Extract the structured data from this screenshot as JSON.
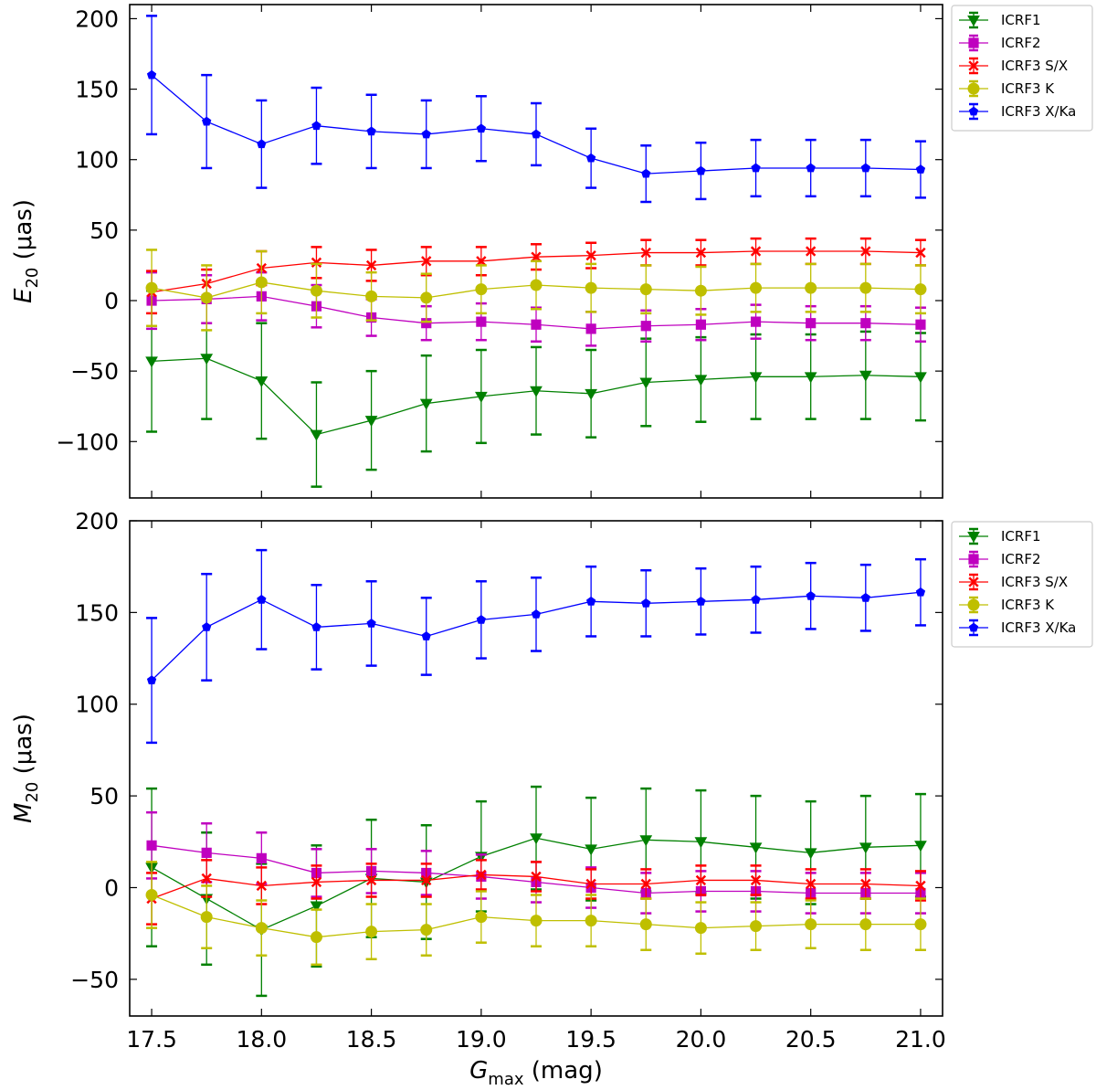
{
  "chart_data": [
    {
      "type": "line",
      "panel": "top",
      "ylabel": {
        "symbol": "E",
        "sub": "20",
        "unit": " (μas)"
      },
      "xlim": [
        17.4,
        21.1
      ],
      "ylim": [
        -140,
        210
      ],
      "yticks": [
        -100,
        -50,
        0,
        50,
        100,
        150,
        200
      ],
      "ytick_labels": [
        "−100",
        "−50",
        "0",
        "50",
        "100",
        "150",
        "200"
      ],
      "x": [
        17.5,
        17.75,
        18.0,
        18.25,
        18.5,
        18.75,
        19.0,
        19.25,
        19.5,
        19.75,
        20.0,
        20.25,
        20.5,
        20.75,
        21.0
      ],
      "legend_position": "upper right, outside",
      "series": [
        {
          "name": "ICRF1",
          "color": "#008000",
          "marker": "triangle-down",
          "values": [
            -43,
            -41,
            -57,
            -95,
            -85,
            -73,
            -68,
            -64,
            -66,
            -58,
            -56,
            -54,
            -54,
            -53,
            -54
          ],
          "errors": [
            50,
            43,
            41,
            37,
            35,
            34,
            33,
            31,
            31,
            31,
            30,
            30,
            30,
            31,
            31
          ]
        },
        {
          "name": "ICRF2",
          "color": "#bf00bf",
          "marker": "square",
          "values": [
            0,
            1,
            3,
            -4,
            -12,
            -16,
            -15,
            -17,
            -20,
            -18,
            -17,
            -15,
            -16,
            -16,
            -17
          ],
          "errors": [
            20,
            17,
            17,
            15,
            13,
            12,
            13,
            12,
            12,
            11,
            11,
            12,
            12,
            12,
            12
          ]
        },
        {
          "name": "ICRF3 S/X",
          "color": "#ff0000",
          "marker": "x",
          "values": [
            6,
            12,
            23,
            27,
            25,
            28,
            28,
            31,
            32,
            34,
            34,
            35,
            35,
            35,
            34
          ],
          "errors": [
            15,
            10,
            12,
            11,
            11,
            10,
            10,
            9,
            9,
            9,
            9,
            9,
            9,
            9,
            9
          ]
        },
        {
          "name": "ICRF3 K",
          "color": "#bfbf00",
          "marker": "circle",
          "values": [
            9,
            2,
            13,
            7,
            3,
            2,
            8,
            11,
            9,
            8,
            7,
            9,
            9,
            9,
            8
          ],
          "errors": [
            27,
            23,
            22,
            19,
            17,
            17,
            17,
            17,
            17,
            17,
            17,
            17,
            17,
            17,
            17
          ]
        },
        {
          "name": "ICRF3 X/Ka",
          "color": "#0000ff",
          "marker": "pentagon",
          "values": [
            160,
            127,
            111,
            124,
            120,
            118,
            122,
            118,
            101,
            90,
            92,
            94,
            94,
            94,
            93
          ],
          "errors": [
            42,
            33,
            31,
            27,
            26,
            24,
            23,
            22,
            21,
            20,
            20,
            20,
            20,
            20,
            20
          ]
        }
      ]
    },
    {
      "type": "line",
      "panel": "bottom",
      "ylabel": {
        "symbol": "M",
        "sub": "20",
        "unit": " (μas)"
      },
      "xlabel": {
        "symbol": "G",
        "sub": "max",
        "unit": " (mag)"
      },
      "xlim": [
        17.4,
        21.1
      ],
      "ylim": [
        -70,
        200
      ],
      "yticks": [
        -50,
        0,
        50,
        100,
        150,
        200
      ],
      "ytick_labels": [
        "−50",
        "0",
        "50",
        "100",
        "150",
        "200"
      ],
      "xticks": [
        17.5,
        18.0,
        18.5,
        19.0,
        19.5,
        20.0,
        20.5,
        21.0
      ],
      "xtick_labels": [
        "17.5",
        "18.0",
        "18.5",
        "19.0",
        "19.5",
        "20.0",
        "20.5",
        "21.0"
      ],
      "x": [
        17.5,
        17.75,
        18.0,
        18.25,
        18.5,
        18.75,
        19.0,
        19.25,
        19.5,
        19.75,
        20.0,
        20.25,
        20.5,
        20.75,
        21.0
      ],
      "legend_position": "upper right, outside",
      "series": [
        {
          "name": "ICRF1",
          "color": "#008000",
          "marker": "triangle-down",
          "values": [
            11,
            -6,
            -23,
            -10,
            5,
            3,
            17,
            27,
            21,
            26,
            25,
            22,
            19,
            22,
            23
          ],
          "errors": [
            43,
            36,
            36,
            33,
            32,
            31,
            30,
            28,
            28,
            28,
            28,
            28,
            28,
            28,
            28
          ]
        },
        {
          "name": "ICRF2",
          "color": "#bf00bf",
          "marker": "square",
          "values": [
            23,
            19,
            16,
            8,
            9,
            8,
            6,
            3,
            0,
            -3,
            -2,
            -2,
            -3,
            -3,
            -3
          ],
          "errors": [
            18,
            16,
            14,
            13,
            12,
            12,
            12,
            11,
            11,
            11,
            11,
            11,
            11,
            11,
            11
          ]
        },
        {
          "name": "ICRF3 S/X",
          "color": "#ff0000",
          "marker": "x",
          "values": [
            -6,
            5,
            1,
            3,
            4,
            4,
            7,
            6,
            2,
            2,
            4,
            4,
            2,
            2,
            1
          ],
          "errors": [
            14,
            10,
            10,
            9,
            9,
            9,
            8,
            8,
            8,
            8,
            8,
            8,
            8,
            8,
            8
          ]
        },
        {
          "name": "ICRF3 K",
          "color": "#bfbf00",
          "marker": "circle",
          "values": [
            -4,
            -16,
            -22,
            -27,
            -24,
            -23,
            -16,
            -18,
            -18,
            -20,
            -22,
            -21,
            -20,
            -20,
            -20
          ],
          "errors": [
            18,
            17,
            15,
            15,
            15,
            14,
            14,
            14,
            14,
            14,
            14,
            13,
            13,
            14,
            14
          ]
        },
        {
          "name": "ICRF3 X/Ka",
          "color": "#0000ff",
          "marker": "pentagon",
          "values": [
            113,
            142,
            157,
            142,
            144,
            137,
            146,
            149,
            156,
            155,
            156,
            157,
            159,
            158,
            161
          ],
          "errors": [
            34,
            29,
            27,
            23,
            23,
            21,
            21,
            20,
            19,
            18,
            18,
            18,
            18,
            18,
            18
          ]
        }
      ]
    }
  ]
}
